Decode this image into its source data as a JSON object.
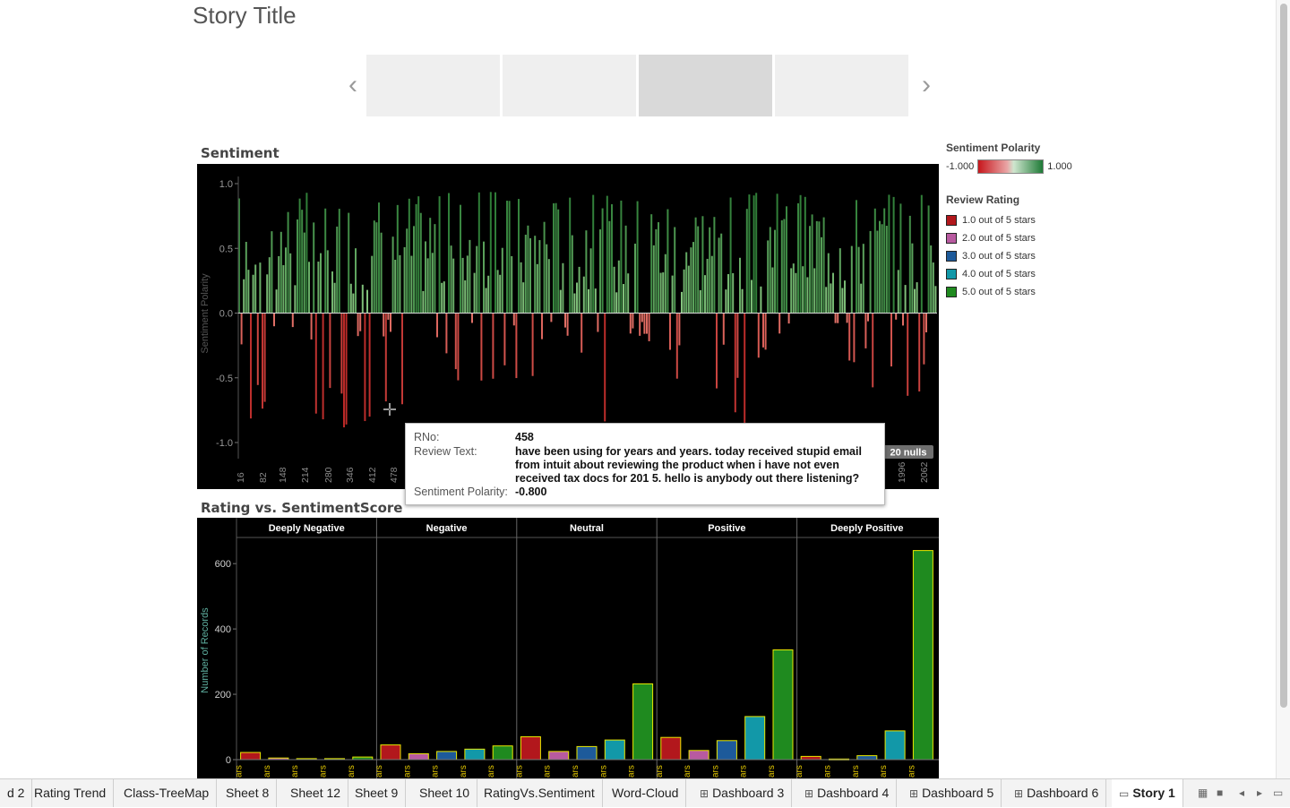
{
  "story": {
    "title": "Story Title"
  },
  "nav": {
    "prev_glyph": "‹",
    "next_glyph": "›",
    "active_index": 2,
    "point_count": 4
  },
  "sentiment": {
    "title": "Sentiment",
    "ylabel": "Sentiment Polarity",
    "yticks": [
      "1.0",
      "0.5",
      "0.0",
      "-0.5",
      "-1.0"
    ],
    "xticks": [
      "16",
      "82",
      "148",
      "214",
      "280",
      "346",
      "412",
      "478",
      "1996",
      "2062"
    ],
    "nulls_label": "20 nulls"
  },
  "legend": {
    "polarity_title": "Sentiment Polarity",
    "polarity_min": "-1.000",
    "polarity_max": "1.000",
    "rating_title": "Review Rating",
    "ratings": [
      {
        "label": "1.0 out of 5 stars",
        "color": "#b2171c"
      },
      {
        "label": "2.0 out of 5 stars",
        "color": "#b85aa0"
      },
      {
        "label": "3.0 out of 5 stars",
        "color": "#1d5a9a"
      },
      {
        "label": "4.0 out of 5 stars",
        "color": "#1298a8"
      },
      {
        "label": "5.0 out of 5 stars",
        "color": "#1f8a1f"
      }
    ]
  },
  "tooltip": {
    "rno_label": "RNo:",
    "rno_value": "458",
    "text_label": "Review Text:",
    "text_value": "have been using for years and years. today received stupid email from intuit about reviewing the product when i have not even received tax docs for 201 5. hello is anybody out there listening?",
    "polarity_label": "Sentiment Polarity:",
    "polarity_value": "-0.800"
  },
  "rating_chart": {
    "title": "Rating vs. SentimentScore",
    "ylabel": "Number of Records",
    "yticks": [
      "600",
      "400",
      "200",
      "0"
    ],
    "x_tick_text": "ars",
    "panels": [
      {
        "name": "Deeply Negative",
        "values": [
          22,
          5,
          3,
          3,
          8
        ]
      },
      {
        "name": "Negative",
        "values": [
          45,
          18,
          25,
          32,
          42
        ]
      },
      {
        "name": "Neutral",
        "values": [
          70,
          25,
          40,
          60,
          232
        ]
      },
      {
        "name": "Positive",
        "values": [
          68,
          28,
          58,
          132,
          336
        ]
      },
      {
        "name": "Deeply Positive",
        "values": [
          10,
          2,
          12,
          88,
          640
        ]
      }
    ]
  },
  "chart_data": [
    {
      "type": "bar",
      "title": "Sentiment",
      "ylabel": "Sentiment Polarity",
      "ylim": [
        -1.0,
        1.0
      ],
      "x_tick_labels": [
        "16",
        "82",
        "148",
        "214",
        "280",
        "346",
        "412",
        "478",
        "1996",
        "2062"
      ],
      "highlighted_point": {
        "RNo": 458,
        "polarity": -0.8
      },
      "nulls": 20,
      "color_scale": {
        "min": -1.0,
        "max": 1.0,
        "low_color": "#c7161c",
        "high_color": "#1e7a36"
      }
    },
    {
      "type": "bar",
      "title": "Rating vs. SentimentScore",
      "ylabel": "Number of Records",
      "ylim": [
        0,
        680
      ],
      "panels": [
        "Deeply Negative",
        "Negative",
        "Neutral",
        "Positive",
        "Deeply Positive"
      ],
      "categories": [
        "1.0 out of 5 stars",
        "2.0 out of 5 stars",
        "3.0 out of 5 stars",
        "4.0 out of 5 stars",
        "5.0 out of 5 stars"
      ],
      "series": [
        {
          "values": [
            22,
            5,
            3,
            3,
            8
          ]
        },
        {
          "values": [
            45,
            18,
            25,
            32,
            42
          ]
        },
        {
          "values": [
            70,
            25,
            40,
            60,
            232
          ]
        },
        {
          "values": [
            68,
            28,
            58,
            132,
            336
          ]
        },
        {
          "values": [
            10,
            2,
            12,
            88,
            640
          ]
        }
      ]
    }
  ],
  "tabs": [
    {
      "label": "d 2",
      "icon": ""
    },
    {
      "label": "Rating Trend",
      "icon": ""
    },
    {
      "label": "Class-TreeMap",
      "icon": ""
    },
    {
      "label": "Sheet 8",
      "icon": ""
    },
    {
      "label": "Sheet 12",
      "icon": ""
    },
    {
      "label": "Sheet 9",
      "icon": ""
    },
    {
      "label": "Sheet 10",
      "icon": ""
    },
    {
      "label": "RatingVs.Sentiment",
      "icon": ""
    },
    {
      "label": "Word-Cloud",
      "icon": ""
    },
    {
      "label": "Dashboard 3",
      "icon": "dashboard-icon"
    },
    {
      "label": "Dashboard 4",
      "icon": "dashboard-icon"
    },
    {
      "label": "Dashboard 5",
      "icon": "dashboard-icon"
    },
    {
      "label": "Dashboard 6",
      "icon": "dashboard-icon"
    },
    {
      "label": "Story 1",
      "icon": "story-icon",
      "active": true
    }
  ]
}
